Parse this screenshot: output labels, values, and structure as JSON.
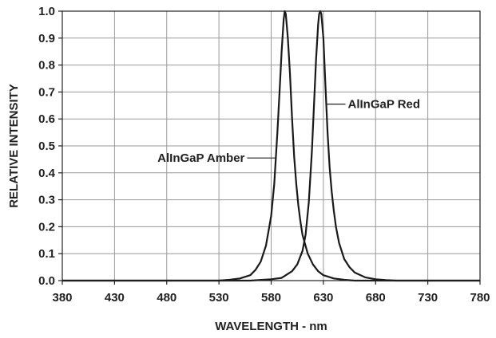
{
  "chart_data": {
    "type": "line",
    "title": "",
    "xlabel": "WAVELENGTH - nm",
    "ylabel": "RELATIVE INTENSITY",
    "xlim": [
      380,
      780
    ],
    "ylim": [
      0,
      1.0
    ],
    "grid": true,
    "x_ticks": [
      "380",
      "430",
      "480",
      "530",
      "580",
      "630",
      "680",
      "730",
      "780"
    ],
    "y_ticks": [
      "0.0",
      "0.1",
      "0.2",
      "0.3",
      "0.4",
      "0.5",
      "0.6",
      "0.7",
      "0.8",
      "0.9",
      "1.0"
    ],
    "series": [
      {
        "name": "AlInGaP Amber",
        "x": [
          380,
          530,
          540,
          550,
          560,
          565,
          570,
          575,
          580,
          583,
          586,
          588,
          590,
          592,
          593,
          594,
          596,
          598,
          600,
          602,
          604,
          606,
          608,
          610,
          615,
          620,
          625,
          630,
          640,
          650,
          660,
          780
        ],
        "y": [
          0.0,
          0.0,
          0.003,
          0.008,
          0.02,
          0.04,
          0.07,
          0.13,
          0.24,
          0.36,
          0.55,
          0.7,
          0.85,
          0.97,
          1.0,
          0.99,
          0.9,
          0.77,
          0.6,
          0.46,
          0.36,
          0.28,
          0.22,
          0.17,
          0.1,
          0.06,
          0.035,
          0.02,
          0.008,
          0.003,
          0.0,
          0.0
        ]
      },
      {
        "name": "AlInGaP Red",
        "x": [
          380,
          560,
          580,
          590,
          600,
          605,
          610,
          613,
          616,
          619,
          621,
          623,
          625,
          626,
          627,
          628,
          630,
          632,
          634,
          636,
          638,
          640,
          642,
          645,
          650,
          655,
          660,
          670,
          680,
          690,
          700,
          780
        ],
        "y": [
          0.0,
          0.0,
          0.005,
          0.01,
          0.035,
          0.06,
          0.11,
          0.17,
          0.29,
          0.48,
          0.65,
          0.82,
          0.95,
          0.99,
          1.0,
          0.99,
          0.9,
          0.72,
          0.55,
          0.42,
          0.33,
          0.26,
          0.2,
          0.14,
          0.08,
          0.05,
          0.03,
          0.012,
          0.005,
          0.002,
          0.0,
          0.0
        ]
      }
    ],
    "annotations": [
      {
        "text": "AlInGaP Red",
        "series": "AlInGaP Red"
      },
      {
        "text": "AlInGaP Amber",
        "series": "AlInGaP Amber"
      }
    ]
  }
}
